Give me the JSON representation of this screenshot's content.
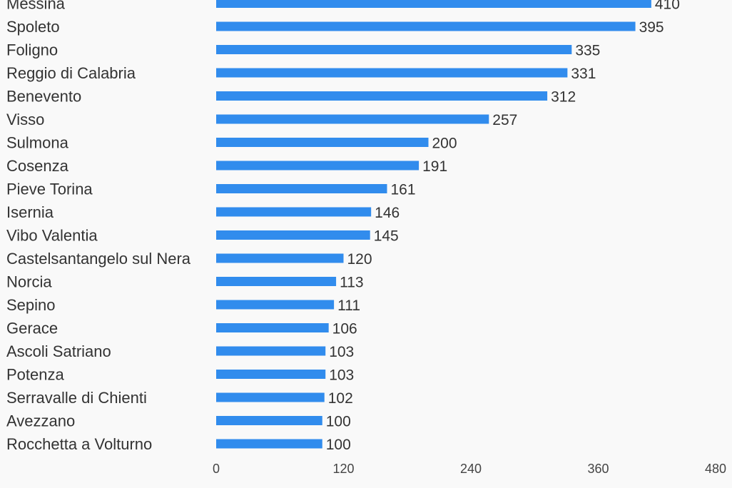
{
  "chart_data": {
    "type": "bar",
    "orientation": "horizontal",
    "title": "",
    "xlabel": "",
    "ylabel": "",
    "categories": [
      "Messina",
      "Spoleto",
      "Foligno",
      "Reggio di Calabria",
      "Benevento",
      "Visso",
      "Sulmona",
      "Cosenza",
      "Pieve Torina",
      "Isernia",
      "Vibo Valentia",
      "Castelsantangelo sul Nera",
      "Norcia",
      "Sepino",
      "Gerace",
      "Ascoli Satriano",
      "Potenza",
      "Serravalle di Chienti",
      "Avezzano",
      "Rocchetta a Volturno"
    ],
    "values": [
      410,
      395,
      335,
      331,
      312,
      257,
      200,
      191,
      161,
      146,
      145,
      120,
      113,
      111,
      106,
      103,
      103,
      102,
      100,
      100
    ],
    "xlim": [
      0,
      480
    ],
    "xticks": [
      0,
      120,
      240,
      360,
      480
    ],
    "grid": false,
    "bar_color": "#318ced",
    "background": "#f9f9f9"
  }
}
